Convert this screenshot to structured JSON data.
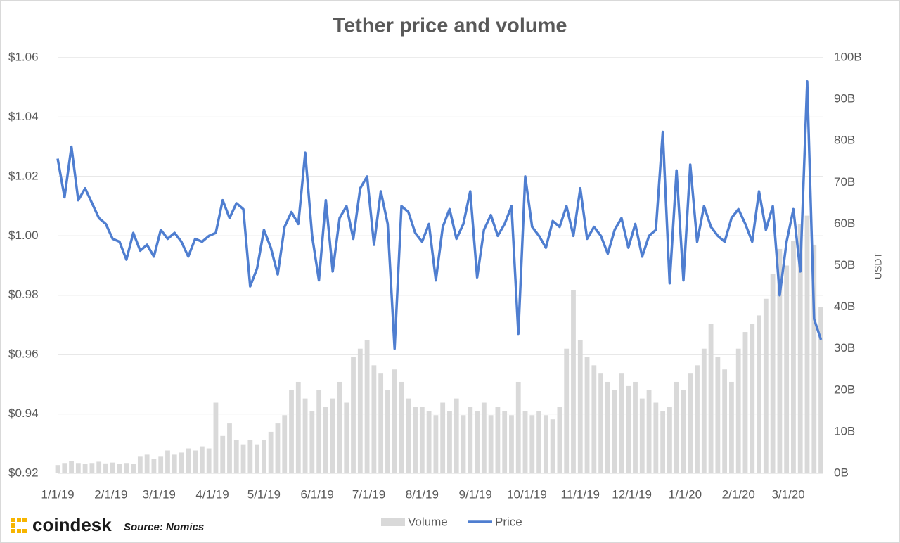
{
  "chart_data": {
    "type": "line",
    "title": "Tether price and volume",
    "y2_label": "USDT",
    "brand": "coindesk",
    "source": "Source: Nomics",
    "x": [
      "2019-01-01",
      "2019-01-05",
      "2019-01-09",
      "2019-01-13",
      "2019-01-17",
      "2019-01-21",
      "2019-01-25",
      "2019-01-29",
      "2019-02-02",
      "2019-02-06",
      "2019-02-10",
      "2019-02-14",
      "2019-02-18",
      "2019-02-22",
      "2019-02-26",
      "2019-03-02",
      "2019-03-06",
      "2019-03-10",
      "2019-03-14",
      "2019-03-18",
      "2019-03-22",
      "2019-03-26",
      "2019-03-30",
      "2019-04-03",
      "2019-04-07",
      "2019-04-11",
      "2019-04-15",
      "2019-04-19",
      "2019-04-23",
      "2019-04-27",
      "2019-05-01",
      "2019-05-05",
      "2019-05-09",
      "2019-05-13",
      "2019-05-17",
      "2019-05-21",
      "2019-05-25",
      "2019-05-29",
      "2019-06-02",
      "2019-06-06",
      "2019-06-10",
      "2019-06-14",
      "2019-06-18",
      "2019-06-22",
      "2019-06-26",
      "2019-06-30",
      "2019-07-04",
      "2019-07-08",
      "2019-07-12",
      "2019-07-16",
      "2019-07-20",
      "2019-07-24",
      "2019-07-28",
      "2019-08-01",
      "2019-08-05",
      "2019-08-09",
      "2019-08-13",
      "2019-08-17",
      "2019-08-21",
      "2019-08-25",
      "2019-08-29",
      "2019-09-02",
      "2019-09-06",
      "2019-09-10",
      "2019-09-14",
      "2019-09-18",
      "2019-09-22",
      "2019-09-26",
      "2019-09-30",
      "2019-10-04",
      "2019-10-08",
      "2019-10-12",
      "2019-10-16",
      "2019-10-20",
      "2019-10-24",
      "2019-10-28",
      "2019-11-01",
      "2019-11-05",
      "2019-11-09",
      "2019-11-13",
      "2019-11-17",
      "2019-11-21",
      "2019-11-25",
      "2019-11-29",
      "2019-12-03",
      "2019-12-07",
      "2019-12-11",
      "2019-12-15",
      "2019-12-19",
      "2019-12-23",
      "2019-12-27",
      "2019-12-31",
      "2020-01-04",
      "2020-01-08",
      "2020-01-12",
      "2020-01-16",
      "2020-01-20",
      "2020-01-24",
      "2020-01-28",
      "2020-02-01",
      "2020-02-05",
      "2020-02-09",
      "2020-02-13",
      "2020-02-17",
      "2020-02-21",
      "2020-02-25",
      "2020-02-29",
      "2020-03-04",
      "2020-03-08",
      "2020-03-12",
      "2020-03-16",
      "2020-03-20"
    ],
    "series": [
      {
        "name": "Volume",
        "type": "bar",
        "axis": "y2",
        "color": "#d9d9d9",
        "values": [
          2,
          2.5,
          3,
          2.5,
          2.2,
          2.5,
          2.8,
          2.4,
          2.6,
          2.3,
          2.5,
          2.2,
          4,
          4.5,
          3.5,
          4,
          5.5,
          4.5,
          5,
          6,
          5.5,
          6.5,
          6,
          17,
          9,
          12,
          8,
          7,
          8,
          7,
          8,
          10,
          12,
          14,
          20,
          22,
          18,
          15,
          20,
          16,
          18,
          22,
          17,
          28,
          30,
          32,
          26,
          24,
          20,
          25,
          22,
          18,
          16,
          16,
          15,
          14,
          17,
          15,
          18,
          14,
          16,
          15,
          17,
          14,
          16,
          15,
          14,
          22,
          15,
          14,
          15,
          14,
          13,
          16,
          30,
          44,
          32,
          28,
          26,
          24,
          22,
          20,
          24,
          21,
          22,
          18,
          20,
          17,
          15,
          16,
          22,
          20,
          24,
          26,
          30,
          36,
          28,
          25,
          22,
          30,
          34,
          36,
          38,
          42,
          48,
          54,
          50,
          56,
          60,
          62,
          55,
          40
        ]
      },
      {
        "name": "Price",
        "type": "line",
        "axis": "y",
        "color": "#4f7ed0",
        "values": [
          1.026,
          1.013,
          1.03,
          1.012,
          1.016,
          1.011,
          1.006,
          1.004,
          0.999,
          0.998,
          0.992,
          1.001,
          0.995,
          0.997,
          0.993,
          1.002,
          0.999,
          1.001,
          0.998,
          0.993,
          0.999,
          0.998,
          1.0,
          1.001,
          1.012,
          1.006,
          1.011,
          1.009,
          0.983,
          0.989,
          1.002,
          0.996,
          0.987,
          1.003,
          1.008,
          1.004,
          1.028,
          1.0,
          0.985,
          1.012,
          0.988,
          1.006,
          1.01,
          0.999,
          1.016,
          1.02,
          0.997,
          1.015,
          1.004,
          0.962,
          1.01,
          1.008,
          1.001,
          0.998,
          1.004,
          0.985,
          1.003,
          1.009,
          0.999,
          1.004,
          1.015,
          0.986,
          1.002,
          1.007,
          1.0,
          1.004,
          1.01,
          0.967,
          1.02,
          1.003,
          1.0,
          0.996,
          1.005,
          1.003,
          1.01,
          1.0,
          1.016,
          0.999,
          1.003,
          1.0,
          0.994,
          1.002,
          1.006,
          0.996,
          1.004,
          0.993,
          1.0,
          1.002,
          1.035,
          0.984,
          1.022,
          0.985,
          1.024,
          0.998,
          1.01,
          1.003,
          1.0,
          0.998,
          1.006,
          1.009,
          1.004,
          0.998,
          1.015,
          1.002,
          1.01,
          0.98,
          0.998,
          1.009,
          0.988,
          1.052,
          0.972,
          0.965
        ]
      }
    ],
    "xlim": [
      "2019-01-01",
      "2020-03-21"
    ],
    "xticks": [
      {
        "value": "2019-01-01",
        "label": "1/1/19"
      },
      {
        "value": "2019-02-01",
        "label": "2/1/19"
      },
      {
        "value": "2019-03-01",
        "label": "3/1/19"
      },
      {
        "value": "2019-04-01",
        "label": "4/1/19"
      },
      {
        "value": "2019-05-01",
        "label": "5/1/19"
      },
      {
        "value": "2019-06-01",
        "label": "6/1/19"
      },
      {
        "value": "2019-07-01",
        "label": "7/1/19"
      },
      {
        "value": "2019-08-01",
        "label": "8/1/19"
      },
      {
        "value": "2019-09-01",
        "label": "9/1/19"
      },
      {
        "value": "2019-10-01",
        "label": "10/1/19"
      },
      {
        "value": "2019-11-01",
        "label": "11/1/19"
      },
      {
        "value": "2019-12-01",
        "label": "12/1/19"
      },
      {
        "value": "2020-01-01",
        "label": "1/1/20"
      },
      {
        "value": "2020-02-01",
        "label": "2/1/20"
      },
      {
        "value": "2020-03-01",
        "label": "3/1/20"
      }
    ],
    "ylim": [
      0.92,
      1.06
    ],
    "yticks": [
      {
        "value": 0.92,
        "label": "$0.92"
      },
      {
        "value": 0.94,
        "label": "$0.94"
      },
      {
        "value": 0.96,
        "label": "$0.96"
      },
      {
        "value": 0.98,
        "label": "$0.98"
      },
      {
        "value": 1.0,
        "label": "$1.00"
      },
      {
        "value": 1.02,
        "label": "$1.02"
      },
      {
        "value": 1.04,
        "label": "$1.04"
      },
      {
        "value": 1.06,
        "label": "$1.06"
      }
    ],
    "y2lim": [
      0,
      100
    ],
    "y2ticks": [
      {
        "value": 0,
        "label": "0B"
      },
      {
        "value": 10,
        "label": "10B"
      },
      {
        "value": 20,
        "label": "20B"
      },
      {
        "value": 30,
        "label": "30B"
      },
      {
        "value": 40,
        "label": "40B"
      },
      {
        "value": 50,
        "label": "50B"
      },
      {
        "value": 60,
        "label": "60B"
      },
      {
        "value": 70,
        "label": "70B"
      },
      {
        "value": 80,
        "label": "80B"
      },
      {
        "value": 90,
        "label": "90B"
      },
      {
        "value": 100,
        "label": "100B"
      }
    ],
    "grid": true,
    "legend": "bottom"
  }
}
